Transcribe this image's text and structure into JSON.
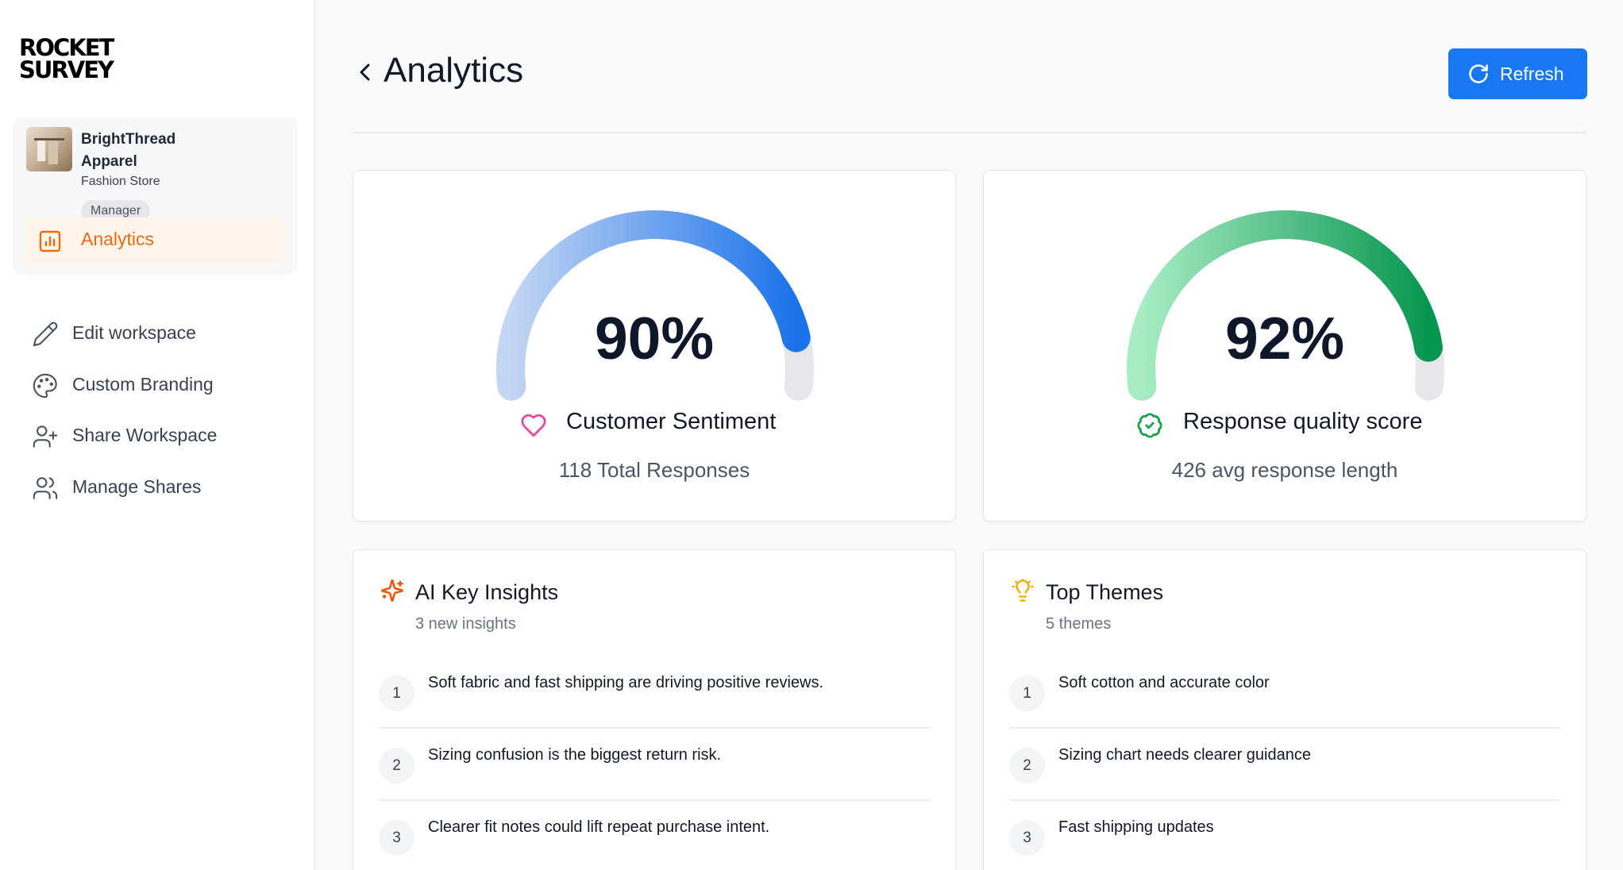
{
  "app": {
    "logo_line1": "ROCKET",
    "logo_line2": "SURVEY"
  },
  "workspace": {
    "name": "BrightThread Apparel",
    "type": "Fashion Store",
    "role": "Manager",
    "active_item": "Analytics"
  },
  "sidebar": {
    "items": [
      {
        "label": "Edit workspace",
        "icon": "pencil-icon"
      },
      {
        "label": "Custom Branding",
        "icon": "palette-icon"
      },
      {
        "label": "Share Workspace",
        "icon": "user-plus-icon"
      },
      {
        "label": "Manage Shares",
        "icon": "users-icon"
      }
    ]
  },
  "header": {
    "title": "Analytics",
    "refresh_label": "Refresh"
  },
  "gauges": [
    {
      "value": 0.9,
      "value_text": "90%",
      "label": "Customer Sentiment",
      "sub": "118 Total Responses",
      "icon": "heart-icon",
      "colors": {
        "start": "#c3d6f3",
        "end": "#1b72ea",
        "track": "#e5e7eb",
        "icon": "#e64aa8"
      }
    },
    {
      "value": 0.92,
      "value_text": "92%",
      "label": "Response quality score",
      "sub": "426 avg response length",
      "icon": "badge-check-icon",
      "colors": {
        "start": "#a8ecc4",
        "end": "#07964f",
        "track": "#e5e7eb",
        "icon": "#16a34a"
      }
    }
  ],
  "insights": {
    "title": "AI Key Insights",
    "sub": "3 new insights",
    "icon": "sparkles-icon",
    "items": [
      {
        "num": "1",
        "text": "Soft fabric and fast shipping are driving positive reviews."
      },
      {
        "num": "2",
        "text": "Sizing confusion is the biggest return risk."
      },
      {
        "num": "3",
        "text": "Clearer fit notes could lift repeat purchase intent."
      }
    ]
  },
  "themes": {
    "title": "Top Themes",
    "sub": "5 themes",
    "icon": "lightbulb-icon",
    "items": [
      {
        "num": "1",
        "text": "Soft cotton and accurate color"
      },
      {
        "num": "2",
        "text": "Sizing chart needs clearer guidance"
      },
      {
        "num": "3",
        "text": "Fast shipping updates"
      }
    ]
  },
  "colors": {
    "accent": "#1877f2",
    "active_nav": "#ea6c0c",
    "active_bg": "#fff4ea"
  }
}
